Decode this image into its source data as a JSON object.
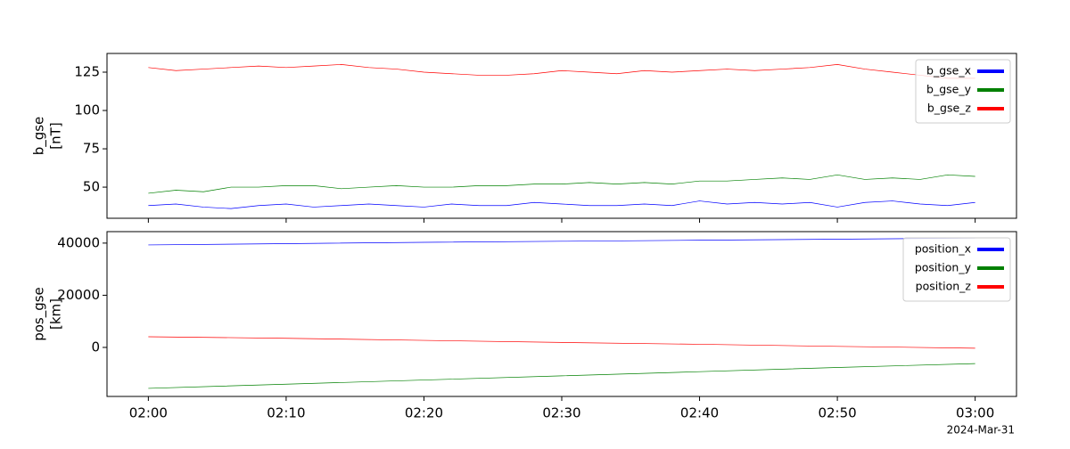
{
  "chart_data": [
    {
      "type": "line",
      "ylabel": "b_gse",
      "yunit": "[nT]",
      "x": [
        "02:00",
        "02:02",
        "02:04",
        "02:06",
        "02:08",
        "02:10",
        "02:12",
        "02:14",
        "02:16",
        "02:18",
        "02:20",
        "02:22",
        "02:24",
        "02:26",
        "02:28",
        "02:30",
        "02:32",
        "02:34",
        "02:36",
        "02:38",
        "02:40",
        "02:42",
        "02:44",
        "02:46",
        "02:48",
        "02:50",
        "02:52",
        "02:54",
        "02:56",
        "02:58",
        "03:00"
      ],
      "series": [
        {
          "name": "b_gse_x",
          "color": "#0000ff",
          "values": [
            38,
            39,
            37,
            36,
            38,
            39,
            37,
            38,
            39,
            38,
            37,
            39,
            38,
            38,
            40,
            39,
            38,
            38,
            39,
            38,
            41,
            39,
            40,
            39,
            40,
            37,
            40,
            41,
            39,
            38,
            40
          ]
        },
        {
          "name": "b_gse_y",
          "color": "#008000",
          "values": [
            46,
            48,
            47,
            50,
            50,
            51,
            51,
            49,
            50,
            51,
            50,
            50,
            51,
            51,
            52,
            52,
            53,
            52,
            53,
            52,
            54,
            54,
            55,
            56,
            55,
            58,
            55,
            56,
            55,
            58,
            57
          ]
        },
        {
          "name": "b_gse_z",
          "color": "#ff0000",
          "values": [
            128,
            126,
            127,
            128,
            129,
            128,
            129,
            130,
            128,
            127,
            125,
            124,
            123,
            123,
            124,
            126,
            125,
            124,
            126,
            125,
            126,
            127,
            126,
            127,
            128,
            130,
            127,
            125,
            123,
            121,
            121
          ]
        }
      ],
      "xlim": [
        "01:57",
        "03:03"
      ],
      "xticks": [
        "02:00",
        "02:10",
        "02:20",
        "02:30",
        "02:40",
        "02:50",
        "03:00"
      ],
      "ylim": [
        29.7,
        137.2
      ],
      "yticks": [
        50,
        75,
        100,
        125
      ],
      "legend": "upper right"
    },
    {
      "type": "line",
      "ylabel": "pos_gse",
      "yunit": "[km]",
      "x": [
        "02:00",
        "02:10",
        "02:20",
        "02:30",
        "02:40",
        "02:50",
        "03:00"
      ],
      "series": [
        {
          "name": "position_x",
          "color": "#0000ff",
          "values": [
            39300,
            39800,
            40300,
            40700,
            41100,
            41500,
            41900
          ]
        },
        {
          "name": "position_y",
          "color": "#008000",
          "values": [
            -15700,
            -14100,
            -12500,
            -10900,
            -9300,
            -7700,
            -6200
          ]
        },
        {
          "name": "position_z",
          "color": "#ff0000",
          "values": [
            4100,
            3500,
            2700,
            1900,
            1200,
            400,
            -300
          ]
        }
      ],
      "xlim": [
        "01:57",
        "03:03"
      ],
      "xticks": [
        "02:00",
        "02:10",
        "02:20",
        "02:30",
        "02:40",
        "02:50",
        "03:00"
      ],
      "ylim": [
        -18800,
        44400
      ],
      "yticks": [
        0,
        20000,
        40000
      ],
      "legend": "upper right",
      "date_label": "2024-Mar-31"
    }
  ]
}
